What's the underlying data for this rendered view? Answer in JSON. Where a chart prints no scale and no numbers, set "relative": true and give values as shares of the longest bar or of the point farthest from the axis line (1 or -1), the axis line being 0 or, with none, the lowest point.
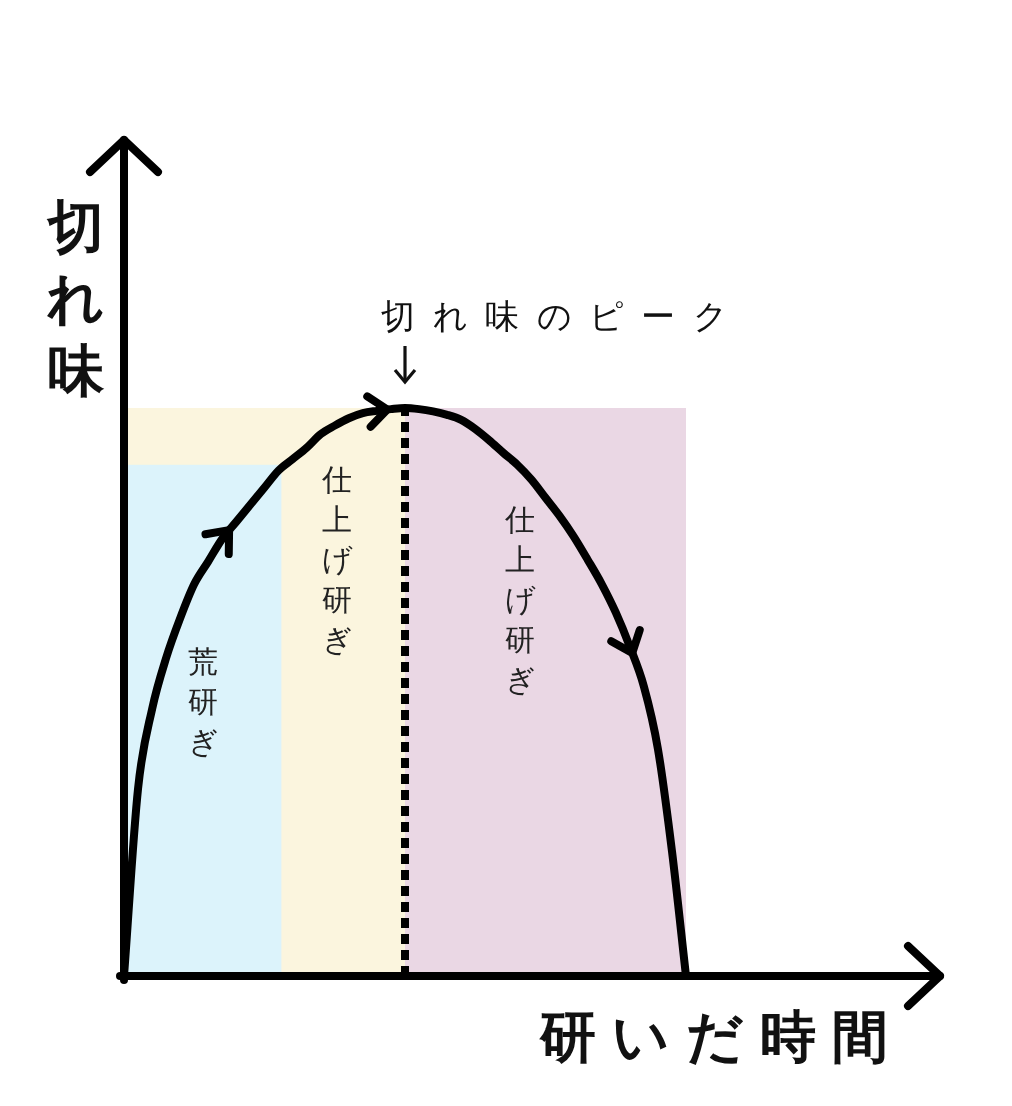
{
  "chart_data": {
    "type": "line",
    "relative": true,
    "xlabel": "研いだ時間",
    "ylabel": "切れ味",
    "categories": [
      null,
      null,
      null,
      null,
      null,
      null,
      null,
      null,
      null,
      null,
      null,
      null,
      null,
      null,
      null,
      null,
      null,
      null,
      null,
      null,
      null,
      null,
      null,
      null,
      null,
      null,
      null,
      null,
      null,
      null,
      null,
      null,
      null,
      null,
      null,
      null,
      null,
      null,
      null,
      null,
      null
    ],
    "series": [
      {
        "color": "#000000",
        "values": [
          0,
          0.33,
          0.47,
          0.56,
          0.63,
          0.69,
          0.73,
          0.77,
          0.8,
          0.83,
          0.86,
          0.89,
          0.91,
          0.93,
          0.954,
          0.969,
          0.982,
          0.991,
          0.995,
          0.998,
          1,
          0.998,
          0.994,
          0.988,
          0.979,
          0.963,
          0.943,
          0.921,
          0.9,
          0.874,
          0.842,
          0.81,
          0.774,
          0.733,
          0.69,
          0.64,
          0.58,
          0.51,
          0.4,
          0.22,
          0
        ]
      }
    ],
    "annotations": [
      "切れ味のピーク",
      "荒研ぎ",
      "仕上げ研ぎ",
      "仕上げ研ぎ"
    ],
    "line_style": "solid",
    "tick_labels": false
  }
}
